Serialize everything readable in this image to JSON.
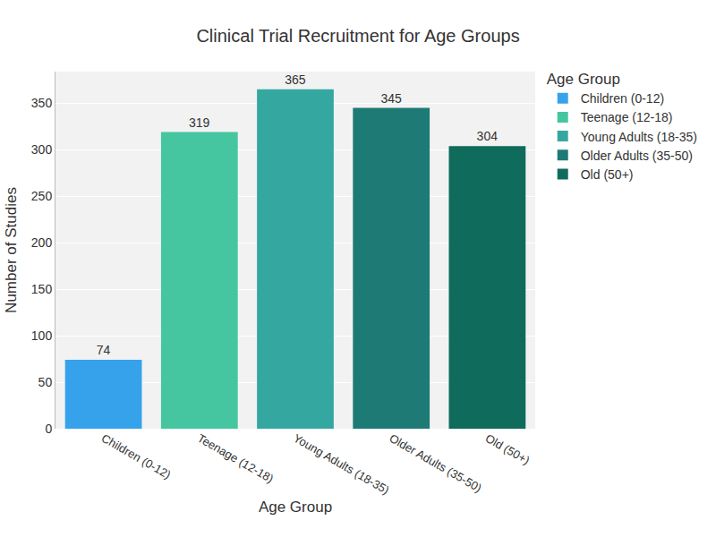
{
  "chart_data": {
    "type": "bar",
    "title": "Clinical Trial Recruitment for Age Groups",
    "x_label": "Age Group",
    "y_label": "Number of Studies",
    "legend_title": "Age Group",
    "categories": [
      "Children (0-12)",
      "Teenage (12-18)",
      "Young Adults (18-35)",
      "Older Adults (35-50)",
      "Old (50+)"
    ],
    "values": [
      74,
      319,
      365,
      345,
      304
    ],
    "colors": [
      "#36A2EB",
      "#45C6A0",
      "#34A8A0",
      "#1E7A75",
      "#0F6B5B"
    ],
    "ylim": [
      0,
      384
    ],
    "yticks": [
      0,
      50,
      100,
      150,
      200,
      250,
      300,
      350
    ],
    "grid": true,
    "legend": "right",
    "data_labels": true
  }
}
